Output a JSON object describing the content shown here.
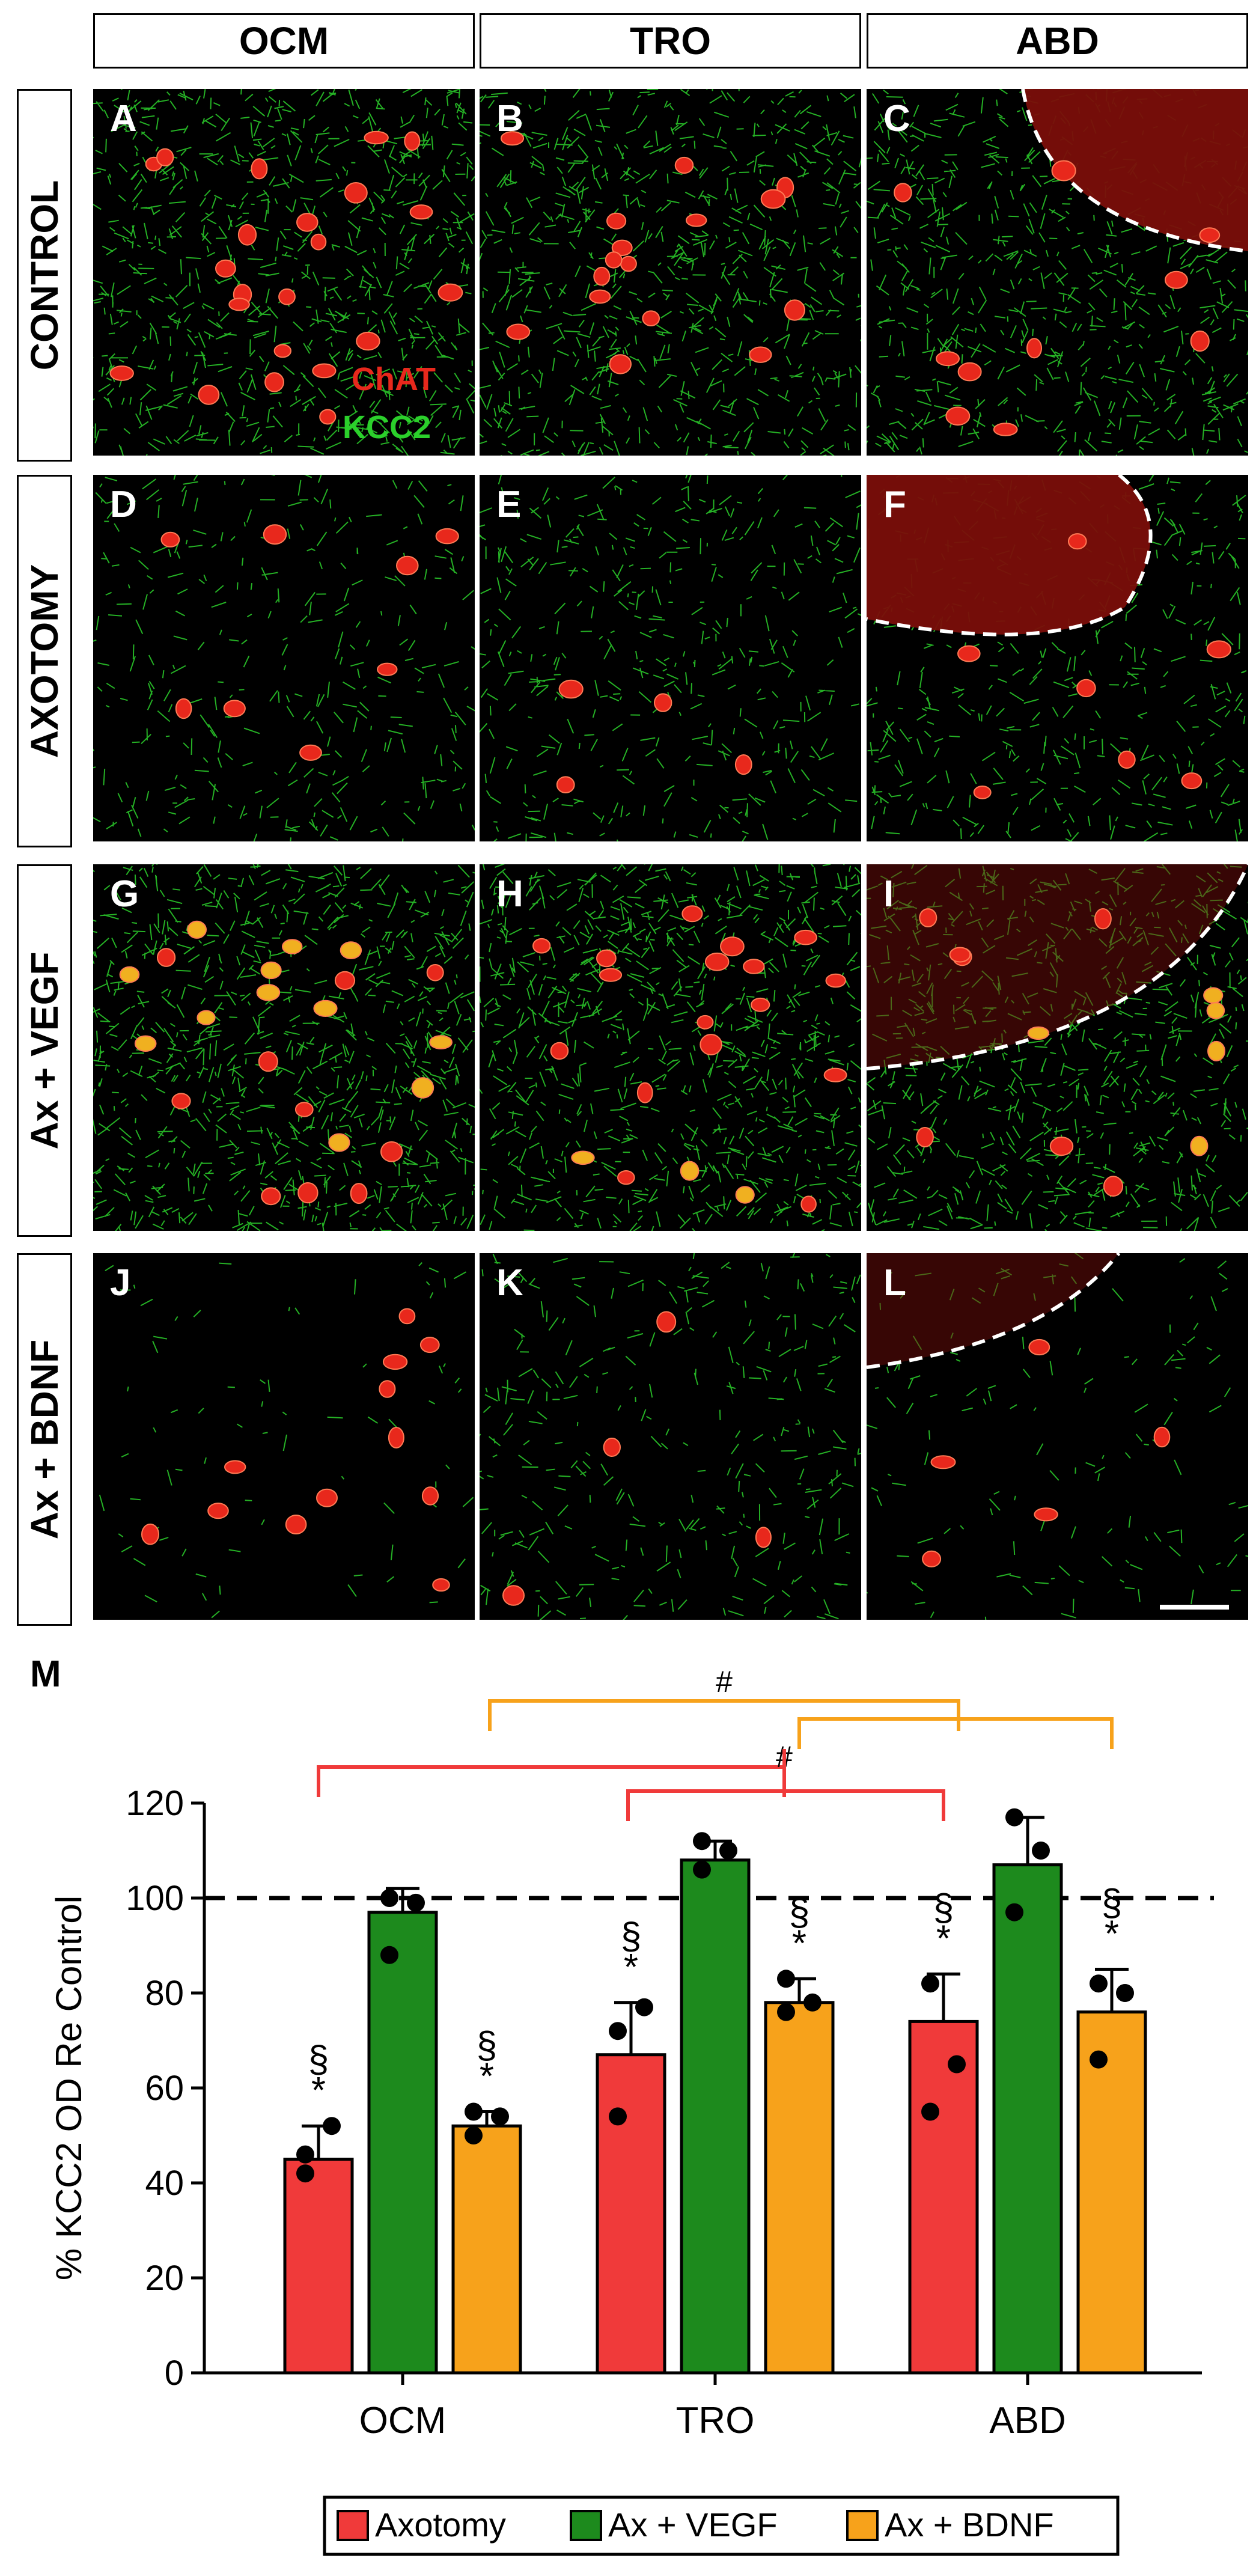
{
  "columns": [
    "OCM",
    "TRO",
    "ABD"
  ],
  "rows": [
    "CONTROL",
    "AXOTOMY",
    "Ax + VEGF",
    "Ax + BDNF"
  ],
  "panels": [
    {
      "letter": "A",
      "density": 0.9,
      "cells": 22,
      "yellow": 0
    },
    {
      "letter": "B",
      "density": 0.8,
      "cells": 16,
      "yellow": 0
    },
    {
      "letter": "C",
      "density": 0.75,
      "cells": 10,
      "yellow": 0,
      "mass": "top-right"
    },
    {
      "letter": "D",
      "density": 0.35,
      "cells": 8,
      "yellow": 0
    },
    {
      "letter": "E",
      "density": 0.45,
      "cells": 4,
      "yellow": 0
    },
    {
      "letter": "F",
      "density": 0.5,
      "cells": 7,
      "yellow": 0,
      "mass": "top-left"
    },
    {
      "letter": "G",
      "density": 0.95,
      "cells": 22,
      "yellow": 0.4
    },
    {
      "letter": "H",
      "density": 0.95,
      "cells": 20,
      "yellow": 0.2
    },
    {
      "letter": "I",
      "density": 0.85,
      "cells": 12,
      "yellow": 0.6,
      "mass": "top-thin"
    },
    {
      "letter": "J",
      "density": 0.08,
      "cells": 12,
      "yellow": 0
    },
    {
      "letter": "K",
      "density": 0.35,
      "cells": 4,
      "yellow": 0
    },
    {
      "letter": "L",
      "density": 0.15,
      "cells": 5,
      "yellow": 0,
      "mass": "top-thin"
    }
  ],
  "legend_labels": {
    "chat": "ChAT",
    "kcc2": "KCC2"
  },
  "panel_m_label": "M",
  "colors": {
    "axotomy": "#f03a3a",
    "vegf": "#1d8a1d",
    "bdnf": "#f7a21b",
    "green_fiber": "#2bd02b",
    "red_cell": "#e8281c"
  },
  "chart_data": {
    "type": "bar",
    "categories": [
      "OCM",
      "TRO",
      "ABD"
    ],
    "series": [
      {
        "name": "Axotomy",
        "color": "#f03a3a",
        "values": [
          45,
          67,
          74
        ],
        "errors": [
          7,
          11,
          10
        ],
        "points": [
          [
            42,
            52,
            46
          ],
          [
            54,
            77,
            72
          ],
          [
            55,
            65,
            82
          ]
        ],
        "marks": [
          "§\n*",
          "§\n*",
          "§\n*"
        ]
      },
      {
        "name": "Ax + VEGF",
        "color": "#1d8a1d",
        "values": [
          97,
          108,
          107
        ],
        "errors": [
          5,
          4,
          10
        ],
        "points": [
          [
            88,
            99,
            100
          ],
          [
            106,
            110,
            112
          ],
          [
            97,
            110,
            117
          ]
        ],
        "marks": [
          "",
          "",
          ""
        ]
      },
      {
        "name": "Ax + BDNF",
        "color": "#f7a21b",
        "values": [
          52,
          78,
          76
        ],
        "errors": [
          3,
          5,
          9
        ],
        "points": [
          [
            50,
            54,
            55
          ],
          [
            76,
            78,
            83
          ],
          [
            66,
            80,
            82
          ]
        ],
        "marks": [
          "§\n*",
          "§\n*",
          "§\n*"
        ]
      }
    ],
    "ylabel": "% KCC2 OD Re Control",
    "ylim": [
      0,
      120
    ],
    "yticks": [
      0,
      20,
      40,
      60,
      80,
      100,
      120
    ],
    "reference_line": 100,
    "brackets": [
      {
        "color": "#f03a3a",
        "label": "#"
      },
      {
        "color": "#f7a21b",
        "label": "#"
      }
    ],
    "legend": [
      "Axotomy",
      "Ax + VEGF",
      "Ax + BDNF"
    ]
  }
}
